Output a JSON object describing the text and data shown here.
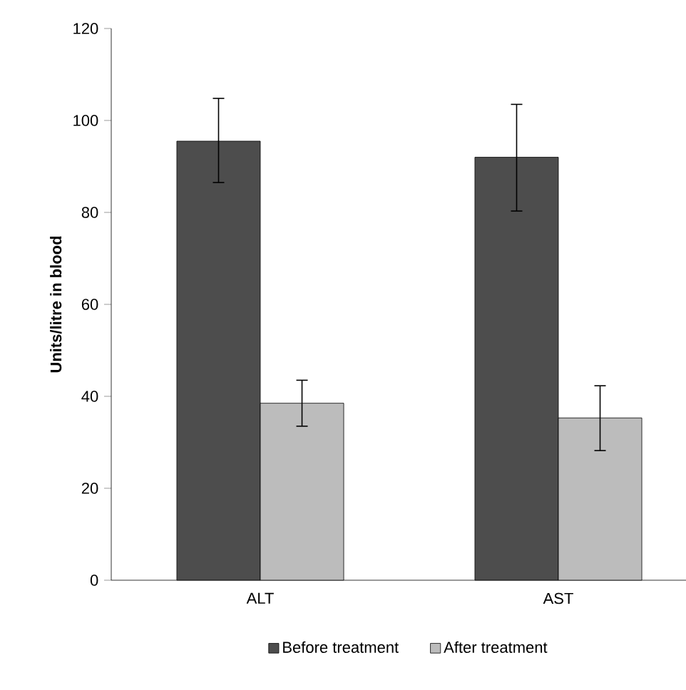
{
  "chart_data": {
    "type": "bar",
    "ylabel": "**Units/litre in blood**",
    "categories": [
      "ALT",
      "AST"
    ],
    "series": [
      {
        "name": "Before treatment",
        "color": "#4d4d4d",
        "values": [
          95.5,
          92
        ],
        "errors": [
          [
            86.5,
            104.8
          ],
          [
            80.3,
            103.5
          ]
        ]
      },
      {
        "name": "After treatment",
        "color": "#bcbcbc",
        "values": [
          38.5,
          35.3
        ],
        "errors": [
          [
            33.5,
            43.5
          ],
          [
            28.2,
            42.3
          ]
        ]
      }
    ],
    "ylim": [
      0,
      120
    ],
    "yticks": [
      0,
      20,
      40,
      60,
      80,
      100,
      120
    ],
    "grid": false,
    "legend": "bottom"
  }
}
